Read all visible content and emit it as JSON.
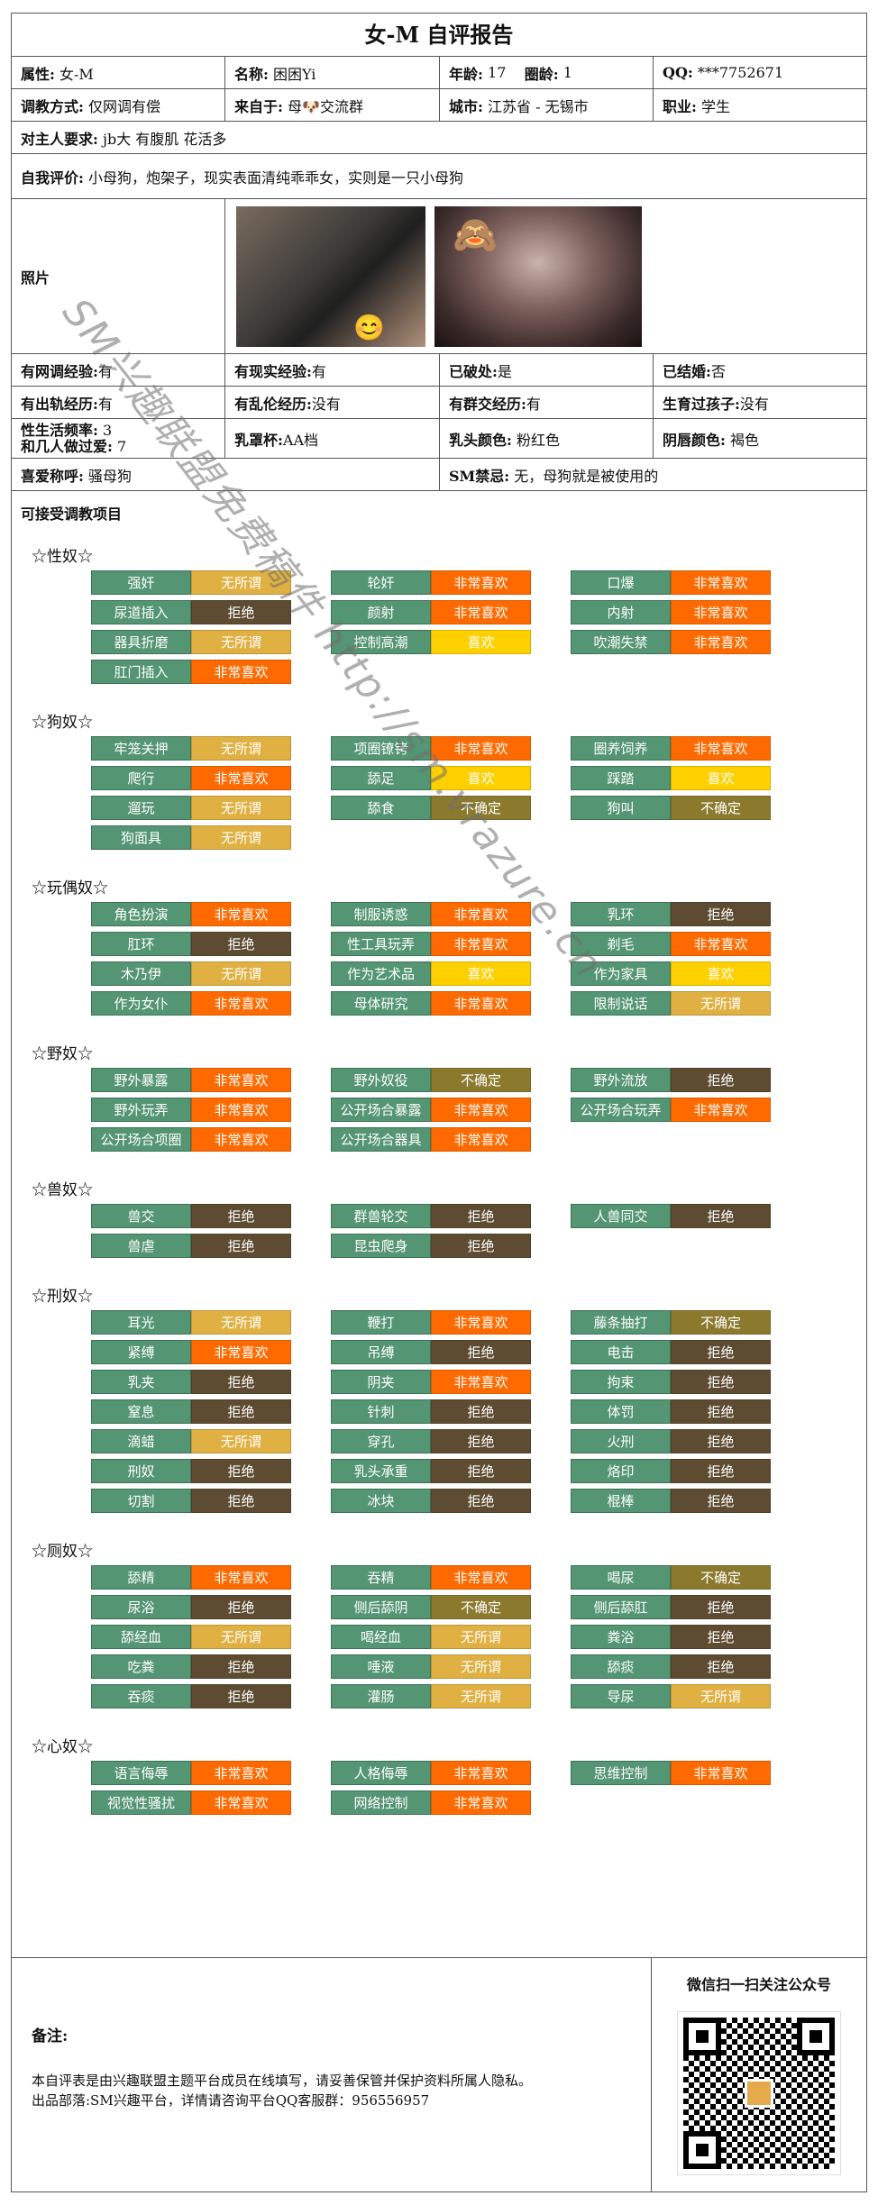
{
  "title": "女-M 自评报告",
  "info": {
    "attr_label": "属性:",
    "attr": "女-M",
    "name_label": "名称:",
    "name": "困困Yi",
    "age_label": "年龄:",
    "age": "17",
    "circle_age_label": "圈龄:",
    "circle_age": "1",
    "qq_label": "QQ:",
    "qq": "***7752671",
    "method_label": "调教方式:",
    "method": "仅网调有偿",
    "from_label": "来自于:",
    "from": "母🐶交流群",
    "city_label": "城市:",
    "city": "江苏省 - 无锡市",
    "job_label": "职业:",
    "job": "学生",
    "req_label": "对主人要求:",
    "req": "jb大 有腹肌 花活多",
    "eval_label": "自我评价:",
    "eval": "小母狗，炮架子，现实表面清纯乖乖女，实则是一只小母狗",
    "photo_label": "照片",
    "online_label": "有网调经验:",
    "online": "有",
    "real_label": "有现实经验:",
    "real": "有",
    "broken_label": "已破处:",
    "broken": "是",
    "married_label": "已结婚:",
    "married": "否",
    "cheat_label": "有出轨经历:",
    "cheat": "有",
    "incest_label": "有乱伦经历:",
    "incest": "没有",
    "group_label": "有群交经历:",
    "group": "有",
    "child_label": "生育过孩子:",
    "child": "没有",
    "freq_label1": "性生活频率:",
    "freq": "3",
    "freq_label2": "和几人做过爱:",
    "partners": "7",
    "cup_label": "乳罩杯:",
    "cup": "AA档",
    "nipple_label": "乳头颜色:",
    "nipple": "粉红色",
    "labia_label": "阴唇颜色:",
    "labia": "褐色",
    "nick_label": "喜爱称呼:",
    "nick": "骚母狗",
    "taboo_label": "SM禁忌:",
    "taboo": "无，母狗就是被使用的",
    "accept_label": "可接受调教项目"
  },
  "watermark": "SM兴趣联盟免费稿件 http://sm.vrazure.cn",
  "sections": [
    {
      "title": "☆性奴☆",
      "items": [
        [
          "强奸",
          "无所谓",
          "any"
        ],
        [
          "轮奸",
          "非常喜欢",
          "love"
        ],
        [
          "口爆",
          "非常喜欢",
          "love"
        ],
        [
          "尿道插入",
          "拒绝",
          "no"
        ],
        [
          "颜射",
          "非常喜欢",
          "love"
        ],
        [
          "内射",
          "非常喜欢",
          "love"
        ],
        [
          "器具折磨",
          "无所谓",
          "any"
        ],
        [
          "控制高潮",
          "喜欢",
          "like"
        ],
        [
          "吹潮失禁",
          "非常喜欢",
          "love"
        ],
        [
          "肛门插入",
          "非常喜欢",
          "love"
        ]
      ]
    },
    {
      "title": "☆狗奴☆",
      "items": [
        [
          "牢笼关押",
          "无所谓",
          "any"
        ],
        [
          "项圈镣铐",
          "非常喜欢",
          "love"
        ],
        [
          "圈养饲养",
          "非常喜欢",
          "love"
        ],
        [
          "爬行",
          "非常喜欢",
          "love"
        ],
        [
          "舔足",
          "喜欢",
          "like"
        ],
        [
          "踩踏",
          "喜欢",
          "like"
        ],
        [
          "遛玩",
          "无所谓",
          "any"
        ],
        [
          "舔食",
          "不确定",
          "unsure"
        ],
        [
          "狗叫",
          "不确定",
          "unsure"
        ],
        [
          "狗面具",
          "无所谓",
          "any"
        ]
      ]
    },
    {
      "title": "☆玩偶奴☆",
      "items": [
        [
          "角色扮演",
          "非常喜欢",
          "love"
        ],
        [
          "制服诱惑",
          "非常喜欢",
          "love"
        ],
        [
          "乳环",
          "拒绝",
          "no"
        ],
        [
          "肛环",
          "拒绝",
          "no"
        ],
        [
          "性工具玩弄",
          "非常喜欢",
          "love"
        ],
        [
          "剃毛",
          "非常喜欢",
          "love"
        ],
        [
          "木乃伊",
          "无所谓",
          "any"
        ],
        [
          "作为艺术品",
          "喜欢",
          "like"
        ],
        [
          "作为家具",
          "喜欢",
          "like"
        ],
        [
          "作为女仆",
          "非常喜欢",
          "love"
        ],
        [
          "母体研究",
          "非常喜欢",
          "love"
        ],
        [
          "限制说话",
          "无所谓",
          "any"
        ]
      ]
    },
    {
      "title": "☆野奴☆",
      "items": [
        [
          "野外暴露",
          "非常喜欢",
          "love"
        ],
        [
          "野外奴役",
          "不确定",
          "unsure"
        ],
        [
          "野外流放",
          "拒绝",
          "no"
        ],
        [
          "野外玩弄",
          "非常喜欢",
          "love"
        ],
        [
          "公开场合暴露",
          "非常喜欢",
          "love"
        ],
        [
          "公开场合玩弄",
          "非常喜欢",
          "love"
        ],
        [
          "公开场合项圈",
          "非常喜欢",
          "love"
        ],
        [
          "公开场合器具",
          "非常喜欢",
          "love"
        ]
      ]
    },
    {
      "title": "☆兽奴☆",
      "items": [
        [
          "兽交",
          "拒绝",
          "no"
        ],
        [
          "群兽轮交",
          "拒绝",
          "no"
        ],
        [
          "人兽同交",
          "拒绝",
          "no"
        ],
        [
          "兽虐",
          "拒绝",
          "no"
        ],
        [
          "昆虫爬身",
          "拒绝",
          "no"
        ]
      ]
    },
    {
      "title": "☆刑奴☆",
      "items": [
        [
          "耳光",
          "无所谓",
          "any"
        ],
        [
          "鞭打",
          "非常喜欢",
          "love"
        ],
        [
          "藤条抽打",
          "不确定",
          "unsure"
        ],
        [
          "紧缚",
          "非常喜欢",
          "love"
        ],
        [
          "吊缚",
          "拒绝",
          "no"
        ],
        [
          "电击",
          "拒绝",
          "no"
        ],
        [
          "乳夹",
          "拒绝",
          "no"
        ],
        [
          "阴夹",
          "非常喜欢",
          "love"
        ],
        [
          "拘束",
          "拒绝",
          "no"
        ],
        [
          "窒息",
          "拒绝",
          "no"
        ],
        [
          "针刺",
          "拒绝",
          "no"
        ],
        [
          "体罚",
          "拒绝",
          "no"
        ],
        [
          "滴蜡",
          "无所谓",
          "any"
        ],
        [
          "穿孔",
          "拒绝",
          "no"
        ],
        [
          "火刑",
          "拒绝",
          "no"
        ],
        [
          "刑奴",
          "拒绝",
          "no"
        ],
        [
          "乳头承重",
          "拒绝",
          "no"
        ],
        [
          "烙印",
          "拒绝",
          "no"
        ],
        [
          "切割",
          "拒绝",
          "no"
        ],
        [
          "冰块",
          "拒绝",
          "no"
        ],
        [
          "棍棒",
          "拒绝",
          "no"
        ]
      ]
    },
    {
      "title": "☆厕奴☆",
      "items": [
        [
          "舔精",
          "非常喜欢",
          "love"
        ],
        [
          "吞精",
          "非常喜欢",
          "love"
        ],
        [
          "喝尿",
          "不确定",
          "unsure"
        ],
        [
          "尿浴",
          "拒绝",
          "no"
        ],
        [
          "侧后舔阴",
          "不确定",
          "unsure"
        ],
        [
          "侧后舔肛",
          "拒绝",
          "no"
        ],
        [
          "舔经血",
          "无所谓",
          "any"
        ],
        [
          "喝经血",
          "无所谓",
          "any"
        ],
        [
          "粪浴",
          "拒绝",
          "no"
        ],
        [
          "吃粪",
          "拒绝",
          "no"
        ],
        [
          "唾液",
          "无所谓",
          "any"
        ],
        [
          "舔痰",
          "拒绝",
          "no"
        ],
        [
          "吞痰",
          "拒绝",
          "no"
        ],
        [
          "灌肠",
          "无所谓",
          "any"
        ],
        [
          "导尿",
          "无所谓",
          "any"
        ]
      ]
    },
    {
      "title": "☆心奴☆",
      "items": [
        [
          "语言侮辱",
          "非常喜欢",
          "love"
        ],
        [
          "人格侮辱",
          "非常喜欢",
          "love"
        ],
        [
          "思维控制",
          "非常喜欢",
          "love"
        ],
        [
          "视觉性骚扰",
          "非常喜欢",
          "love"
        ],
        [
          "网络控制",
          "非常喜欢",
          "love"
        ]
      ]
    }
  ],
  "footer": {
    "notes_title": "备注:",
    "notes_line1": "本自评表是由兴趣联盟主题平台成员在线填写，请妥善保管并保护资料所属人隐私。",
    "notes_line2": "出品部落:SM兴趣平台，详情请咨询平台QQ客服群：956556957",
    "qr_title": "微信扫一扫关注公众号"
  },
  "colors": {
    "love": "#ff6a00",
    "any": "#e0b142",
    "like": "#ffd000",
    "no": "#5d4c31",
    "unsure": "#8b7a2e",
    "name": "#549573"
  }
}
